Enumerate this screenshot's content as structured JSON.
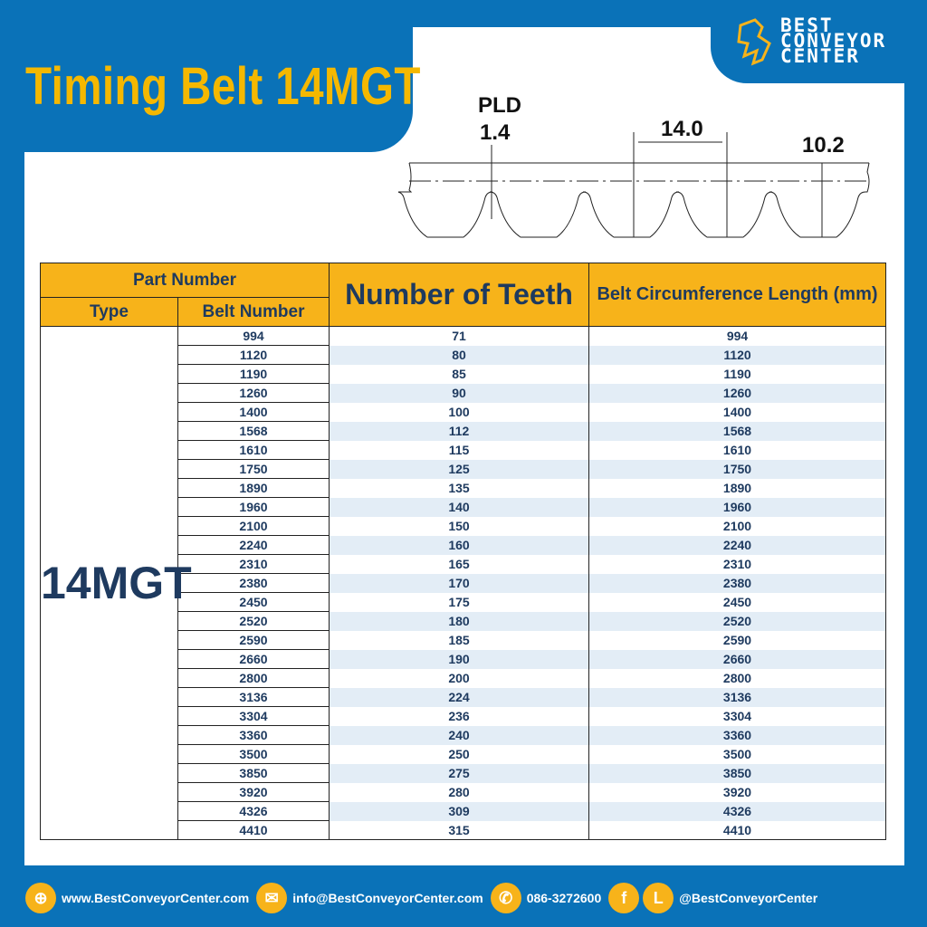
{
  "title": "Timing Belt 14MGT",
  "logo": {
    "line1": "BEST",
    "line2": "CONVEYOR",
    "line3": "CENTER"
  },
  "diagram": {
    "pld_label": "PLD",
    "pld_value": "1.4",
    "pitch": "14.0",
    "height": "10.2"
  },
  "table": {
    "header": {
      "part_number": "Part Number",
      "type": "Type",
      "belt_number": "Belt Number",
      "teeth": "Number of Teeth",
      "length": "Belt Circumference Length (mm)"
    },
    "type": "14MGT",
    "rows": [
      [
        "994",
        "71",
        "994"
      ],
      [
        "1120",
        "80",
        "1120"
      ],
      [
        "1190",
        "85",
        "1190"
      ],
      [
        "1260",
        "90",
        "1260"
      ],
      [
        "1400",
        "100",
        "1400"
      ],
      [
        "1568",
        "112",
        "1568"
      ],
      [
        "1610",
        "115",
        "1610"
      ],
      [
        "1750",
        "125",
        "1750"
      ],
      [
        "1890",
        "135",
        "1890"
      ],
      [
        "1960",
        "140",
        "1960"
      ],
      [
        "2100",
        "150",
        "2100"
      ],
      [
        "2240",
        "160",
        "2240"
      ],
      [
        "2310",
        "165",
        "2310"
      ],
      [
        "2380",
        "170",
        "2380"
      ],
      [
        "2450",
        "175",
        "2450"
      ],
      [
        "2520",
        "180",
        "2520"
      ],
      [
        "2590",
        "185",
        "2590"
      ],
      [
        "2660",
        "190",
        "2660"
      ],
      [
        "2800",
        "200",
        "2800"
      ],
      [
        "3136",
        "224",
        "3136"
      ],
      [
        "3304",
        "236",
        "3304"
      ],
      [
        "3360",
        "240",
        "3360"
      ],
      [
        "3500",
        "250",
        "3500"
      ],
      [
        "3850",
        "275",
        "3850"
      ],
      [
        "3920",
        "280",
        "3920"
      ],
      [
        "4326",
        "309",
        "4326"
      ],
      [
        "4410",
        "315",
        "4410"
      ]
    ]
  },
  "footer": {
    "website": "www.BestConveyorCenter.com",
    "email": "info@BestConveyorCenter.com",
    "phone": "086-3272600",
    "social": "@BestConveyorCenter",
    "line_letter": "L",
    "facebook_letter": "f"
  },
  "colors": {
    "brand_blue": "#0a72b8",
    "accent_yellow": "#f7b31a",
    "text_navy": "#1e3a5f"
  }
}
